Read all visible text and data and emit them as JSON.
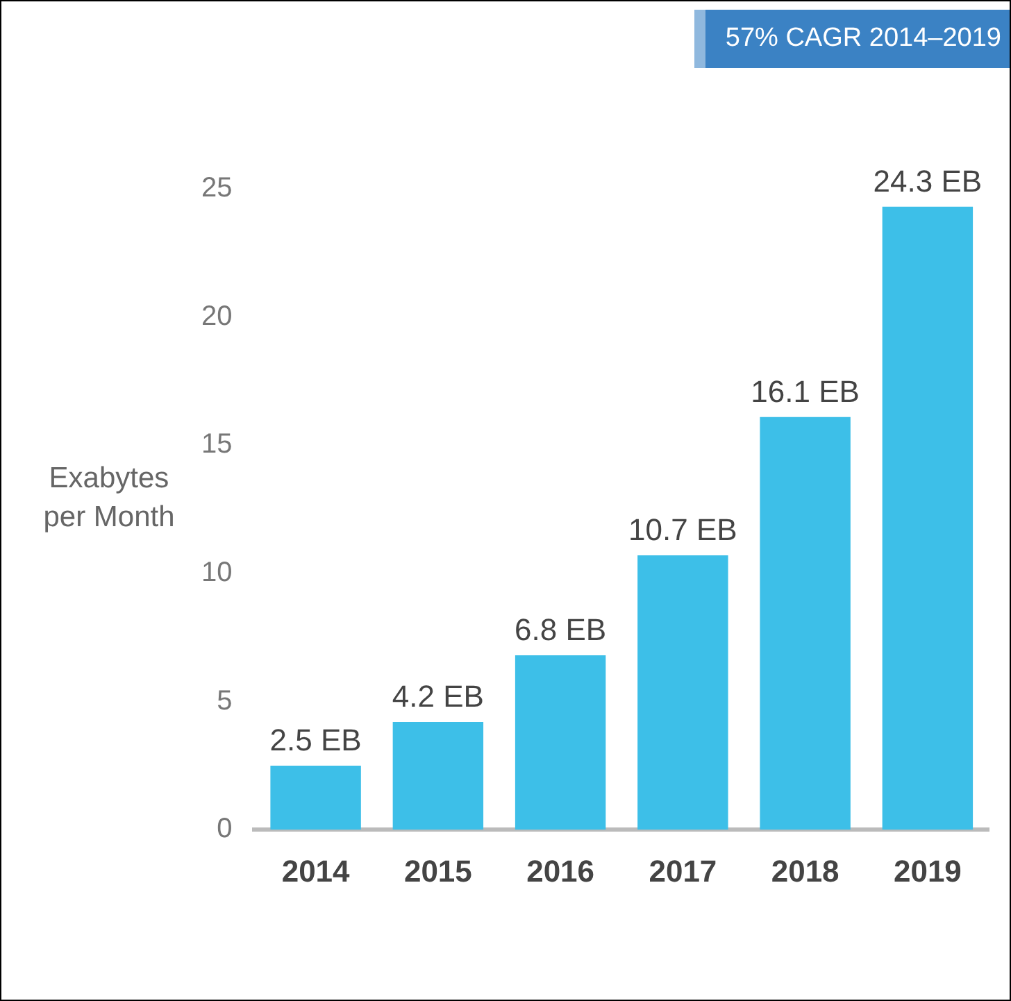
{
  "chart_data": {
    "type": "bar",
    "ylabel": "Exabytes per Month",
    "categories": [
      "2014",
      "2015",
      "2016",
      "2017",
      "2018",
      "2019"
    ],
    "values": [
      2.5,
      4.2,
      6.8,
      10.7,
      16.1,
      24.3
    ],
    "value_labels": [
      "2.5 EB",
      "4.2 EB",
      "6.8 EB",
      "10.7 EB",
      "16.1 EB",
      "24.3 EB"
    ],
    "color": "#3dbfe8",
    "ylim": [
      0,
      25
    ],
    "yticks": [
      0,
      5,
      10,
      15,
      20,
      25
    ],
    "grid": false,
    "annotations": [
      "57% CAGR 2014–2019"
    ]
  }
}
